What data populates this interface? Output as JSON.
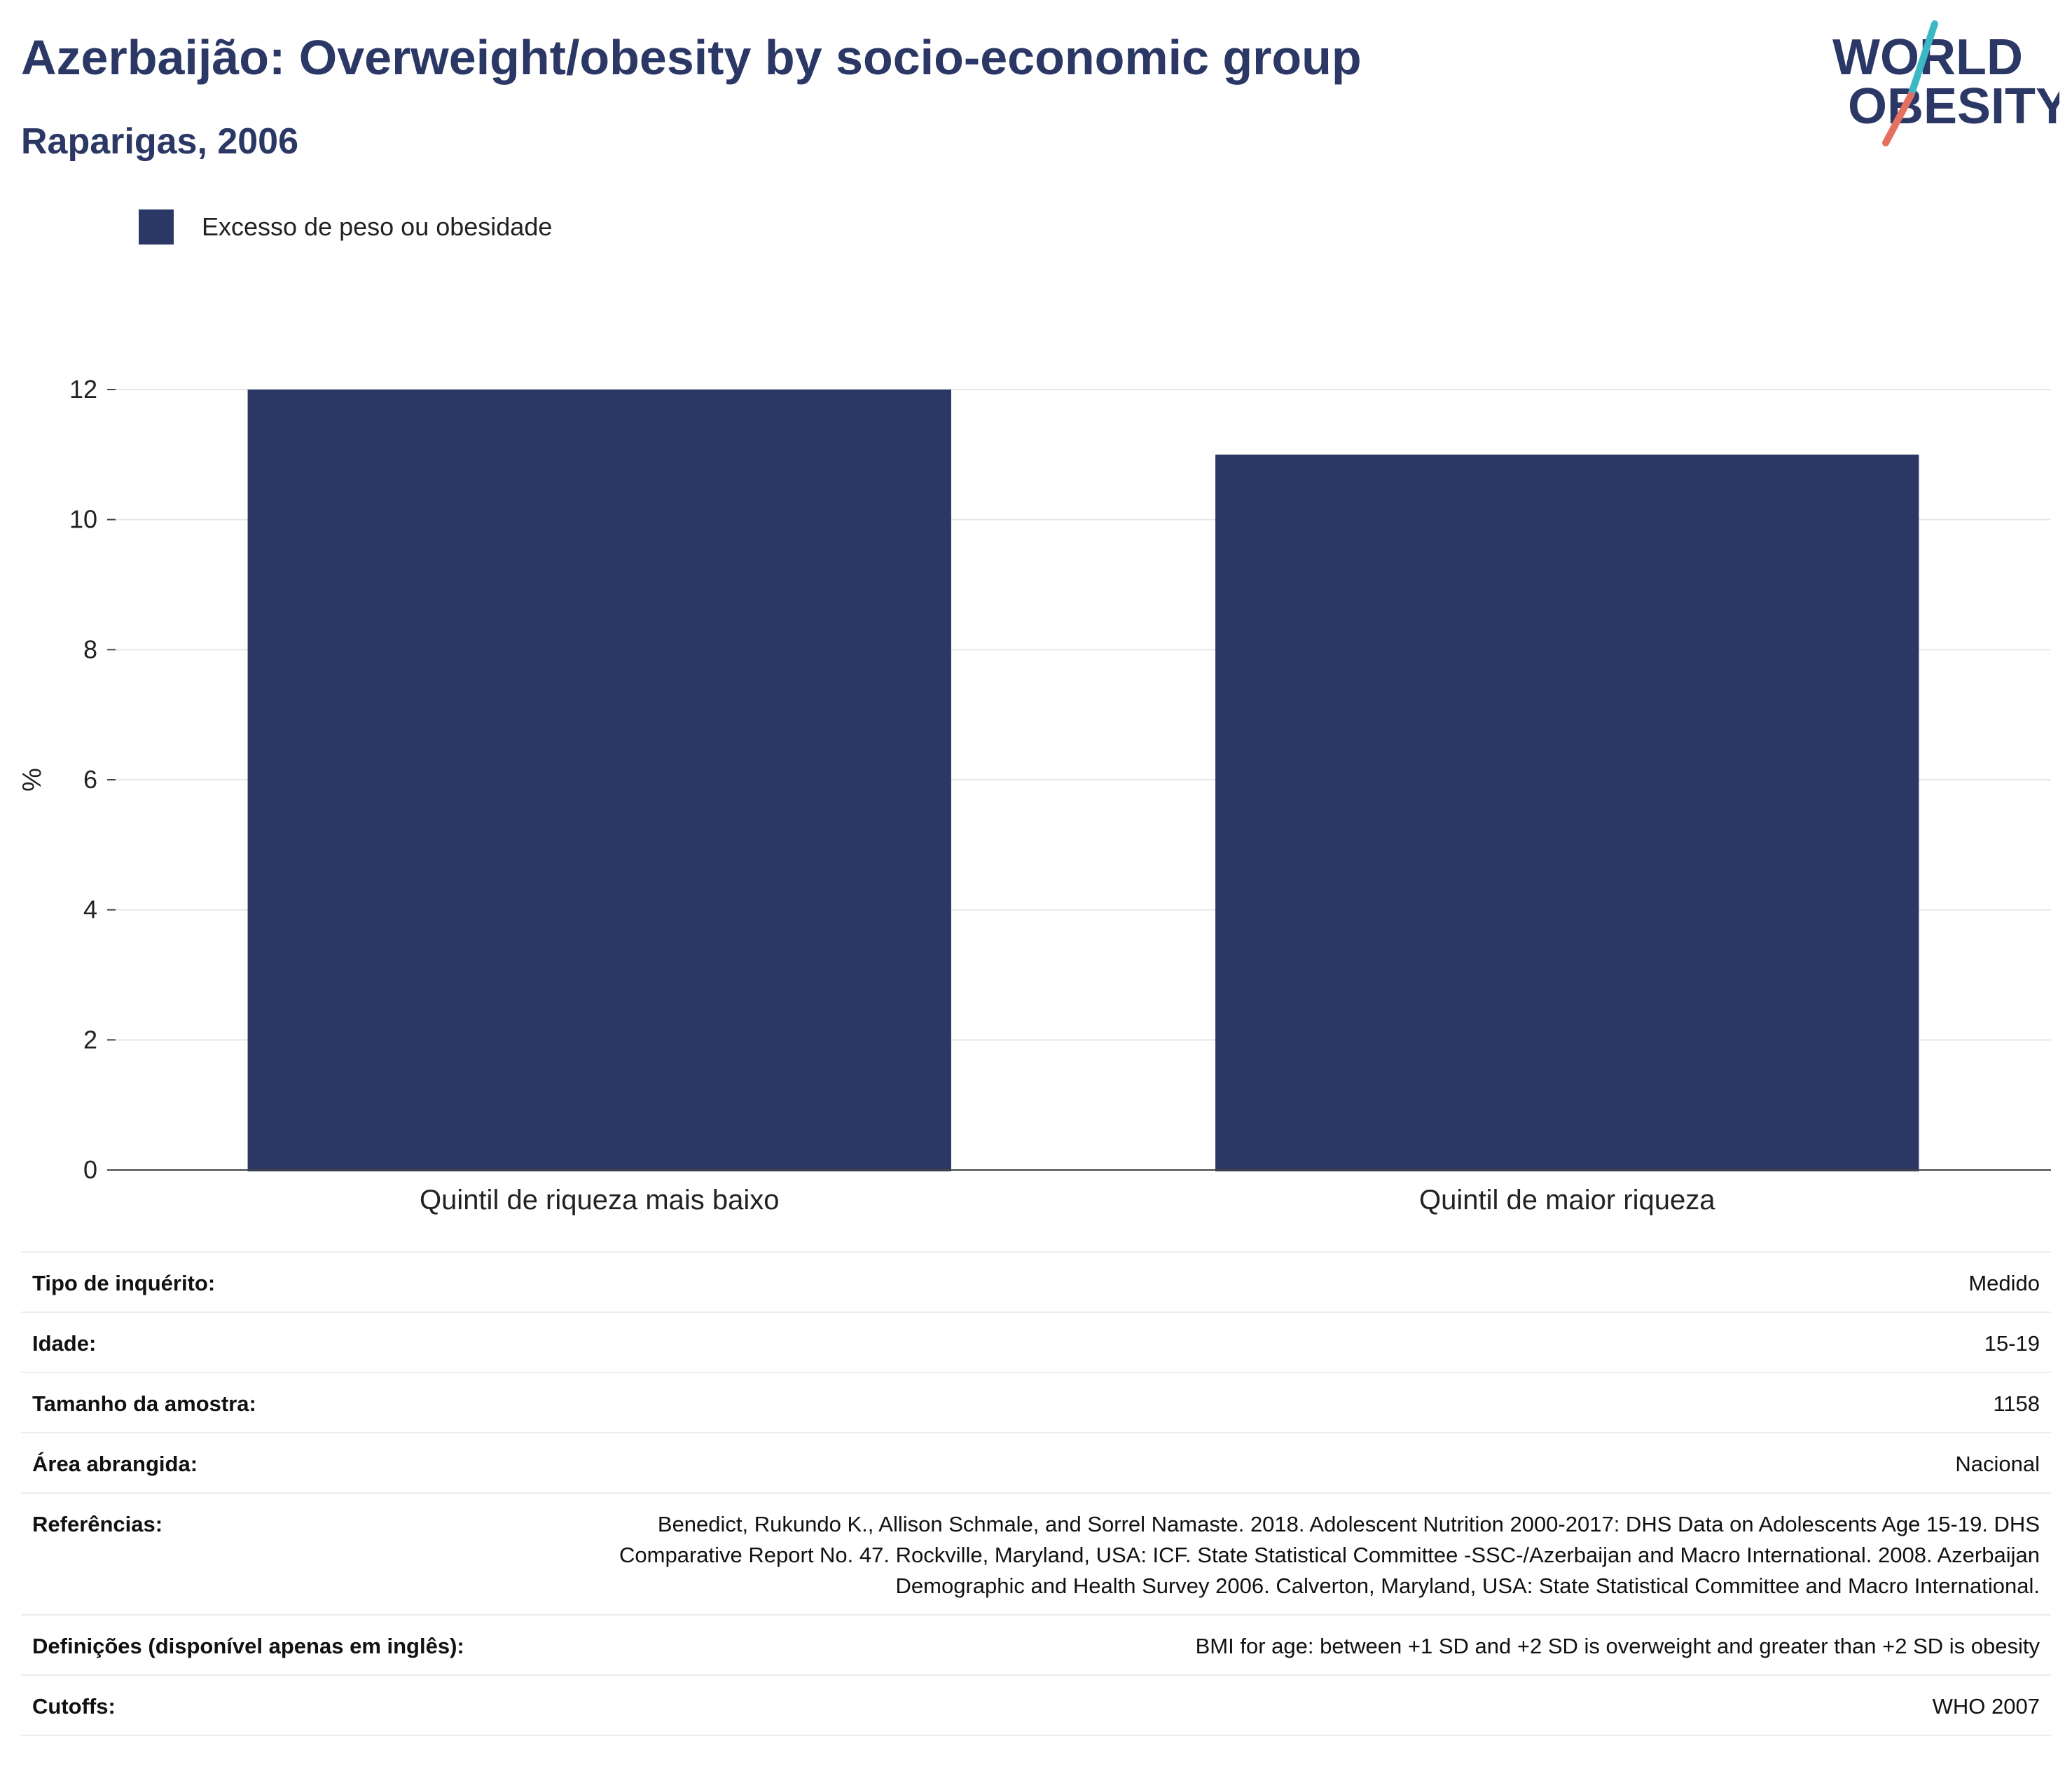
{
  "header": {
    "title": "Azerbaijão: Overweight/obesity by socio-economic group",
    "subtitle": "Raparigas, 2006"
  },
  "logo": {
    "line1": "WORLD",
    "line2": "OBESITY",
    "colors": {
      "text": "#2b3764",
      "slash_top": "#3bb8c4",
      "slash_bottom": "#e4705f"
    }
  },
  "legend": {
    "label": "Excesso de peso ou obesidade",
    "color": "#2b3764"
  },
  "chart_data": {
    "type": "bar",
    "categories": [
      "Quintil de riqueza mais baixo",
      "Quintil de maior riqueza"
    ],
    "series": [
      {
        "name": "Excesso de peso ou obesidade",
        "values": [
          12,
          11
        ],
        "color": "#2b3764"
      }
    ],
    "ylabel": "%",
    "xlabel": "",
    "ylim": [
      0,
      12
    ],
    "yticks": [
      0,
      2,
      4,
      6,
      8,
      10,
      12
    ],
    "grid": true,
    "legend_position": "top-left"
  },
  "meta": {
    "rows": [
      {
        "key": "Tipo de inquérito:",
        "value": "Medido"
      },
      {
        "key": "Idade:",
        "value": "15-19"
      },
      {
        "key": "Tamanho da amostra:",
        "value": "1158"
      },
      {
        "key": "Área abrangida:",
        "value": "Nacional"
      },
      {
        "key": "Referências:",
        "value": "Benedict, Rukundo K., Allison Schmale, and Sorrel Namaste. 2018. Adolescent Nutrition 2000-2017: DHS Data on Adolescents Age 15-19. DHS Comparative Report No. 47. Rockville, Maryland, USA: ICF. State Statistical Committee -SSC-/Azerbaijan and Macro International. 2008. Azerbaijan Demographic and Health Survey 2006. Calverton, Maryland, USA: State Statistical Committee and Macro International."
      },
      {
        "key": "Definições (disponível apenas em inglês):",
        "value": "BMI for age: between +1 SD and +2 SD is overweight and greater than +2 SD is obesity"
      },
      {
        "key": "Cutoffs:",
        "value": "WHO 2007"
      }
    ]
  }
}
